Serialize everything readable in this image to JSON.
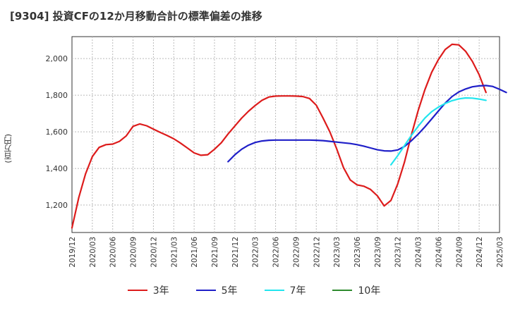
{
  "chart_data": {
    "type": "line",
    "title": "[9304]  投資CFの12か月移動合計の標準偏差の推移",
    "ylabel": "(百万円)",
    "xlabel": "",
    "ylim": [
      1050,
      2120
    ],
    "yticks": [
      "1,200",
      "1,400",
      "1,600",
      "1,800",
      "2,000"
    ],
    "ytick_values": [
      1200,
      1400,
      1600,
      1800,
      2000
    ],
    "xticks": [
      "2019/12",
      "2020/03",
      "2020/06",
      "2020/09",
      "2020/12",
      "2021/03",
      "2021/06",
      "2021/09",
      "2021/12",
      "2022/03",
      "2022/06",
      "2022/09",
      "2022/12",
      "2023/03",
      "2023/06",
      "2023/09",
      "2023/12",
      "2024/03",
      "2024/06",
      "2024/09",
      "2024/12",
      "2025/03"
    ],
    "grid": true,
    "legend_position": "bottom",
    "series": [
      {
        "name": "3年",
        "color": "#dd1c1c",
        "x_start": "2019/12",
        "values": [
          1075,
          1240,
          1370,
          1465,
          1515,
          1530,
          1533,
          1548,
          1578,
          1630,
          1643,
          1633,
          1615,
          1597,
          1580,
          1562,
          1538,
          1512,
          1485,
          1472,
          1475,
          1505,
          1540,
          1588,
          1632,
          1675,
          1712,
          1744,
          1772,
          1790,
          1795,
          1796,
          1796,
          1795,
          1793,
          1782,
          1745,
          1675,
          1600,
          1508,
          1405,
          1337,
          1310,
          1303,
          1285,
          1250,
          1195,
          1225,
          1315,
          1435,
          1582,
          1715,
          1830,
          1925,
          1995,
          2050,
          2078,
          2075,
          2040,
          1985,
          1912,
          1815
        ]
      },
      {
        "name": "5年",
        "color": "#1f1fc8",
        "x_start": "2021/11",
        "values": [
          1437,
          1475,
          1505,
          1527,
          1542,
          1550,
          1554,
          1555,
          1555,
          1555,
          1555,
          1555,
          1555,
          1554,
          1552,
          1548,
          1544,
          1540,
          1536,
          1530,
          1522,
          1512,
          1502,
          1496,
          1495,
          1501,
          1520,
          1551,
          1587,
          1627,
          1670,
          1714,
          1757,
          1793,
          1818,
          1834,
          1846,
          1851,
          1853,
          1848,
          1832,
          1815
        ]
      },
      {
        "name": "7年",
        "color": "#22e5ee",
        "x_start": "2023/11",
        "values": [
          1420,
          1470,
          1525,
          1580,
          1630,
          1675,
          1710,
          1735,
          1755,
          1770,
          1780,
          1785,
          1784,
          1779,
          1772
        ]
      },
      {
        "name": "10年",
        "color": "#2e8b2e",
        "x_start": "",
        "values": []
      }
    ]
  }
}
